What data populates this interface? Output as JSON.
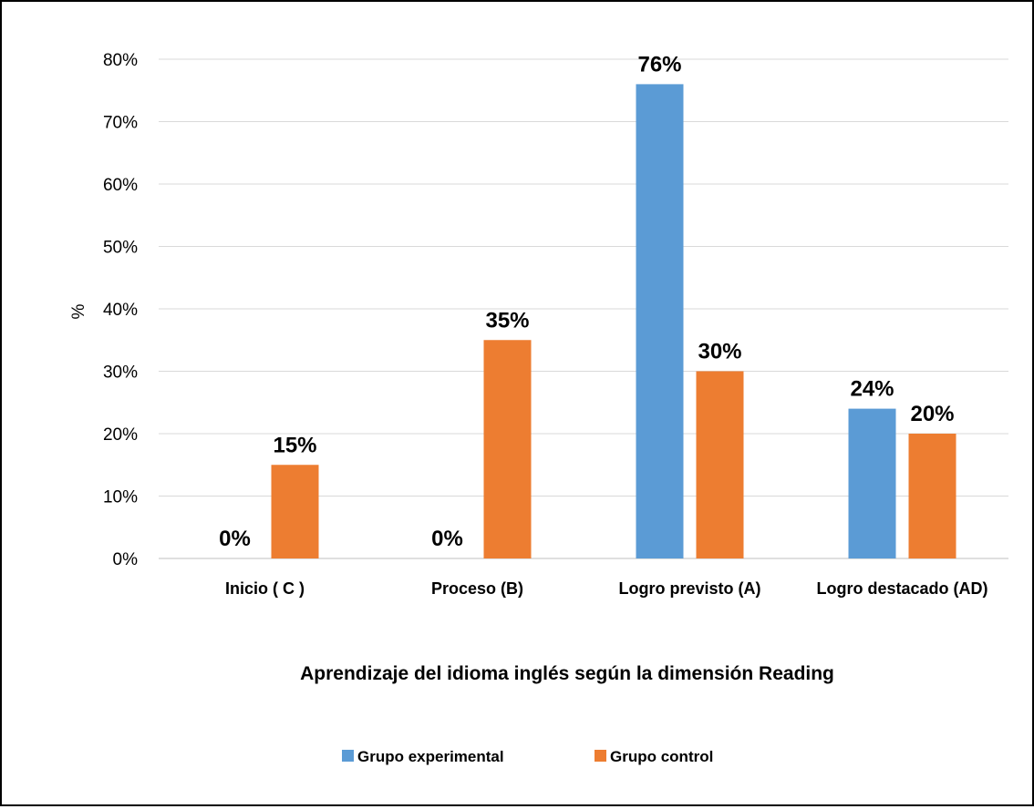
{
  "chart_data": {
    "type": "bar",
    "title": "Aprendizaje del idioma inglés según la dimensión Reading",
    "ylabel": "%",
    "xlabel": "",
    "categories": [
      "Inicio ( C )",
      "Proceso (B)",
      "Logro previsto (A)",
      "Logro destacado (AD)"
    ],
    "series": [
      {
        "name": "Grupo experimental",
        "color": "#5B9BD5",
        "values": [
          0,
          0,
          76,
          24
        ],
        "labels": [
          "0%",
          "0%",
          "76%",
          "24%"
        ]
      },
      {
        "name": "Grupo control",
        "color": "#ED7D31",
        "values": [
          15,
          35,
          30,
          20
        ],
        "labels": [
          "15%",
          "35%",
          "30%",
          "20%"
        ]
      }
    ],
    "ylim": [
      0,
      80
    ],
    "yticks": [
      "0%",
      "10%",
      "20%",
      "30%",
      "40%",
      "50%",
      "60%",
      "70%",
      "80%"
    ],
    "grid": true,
    "legend_position": "bottom"
  }
}
